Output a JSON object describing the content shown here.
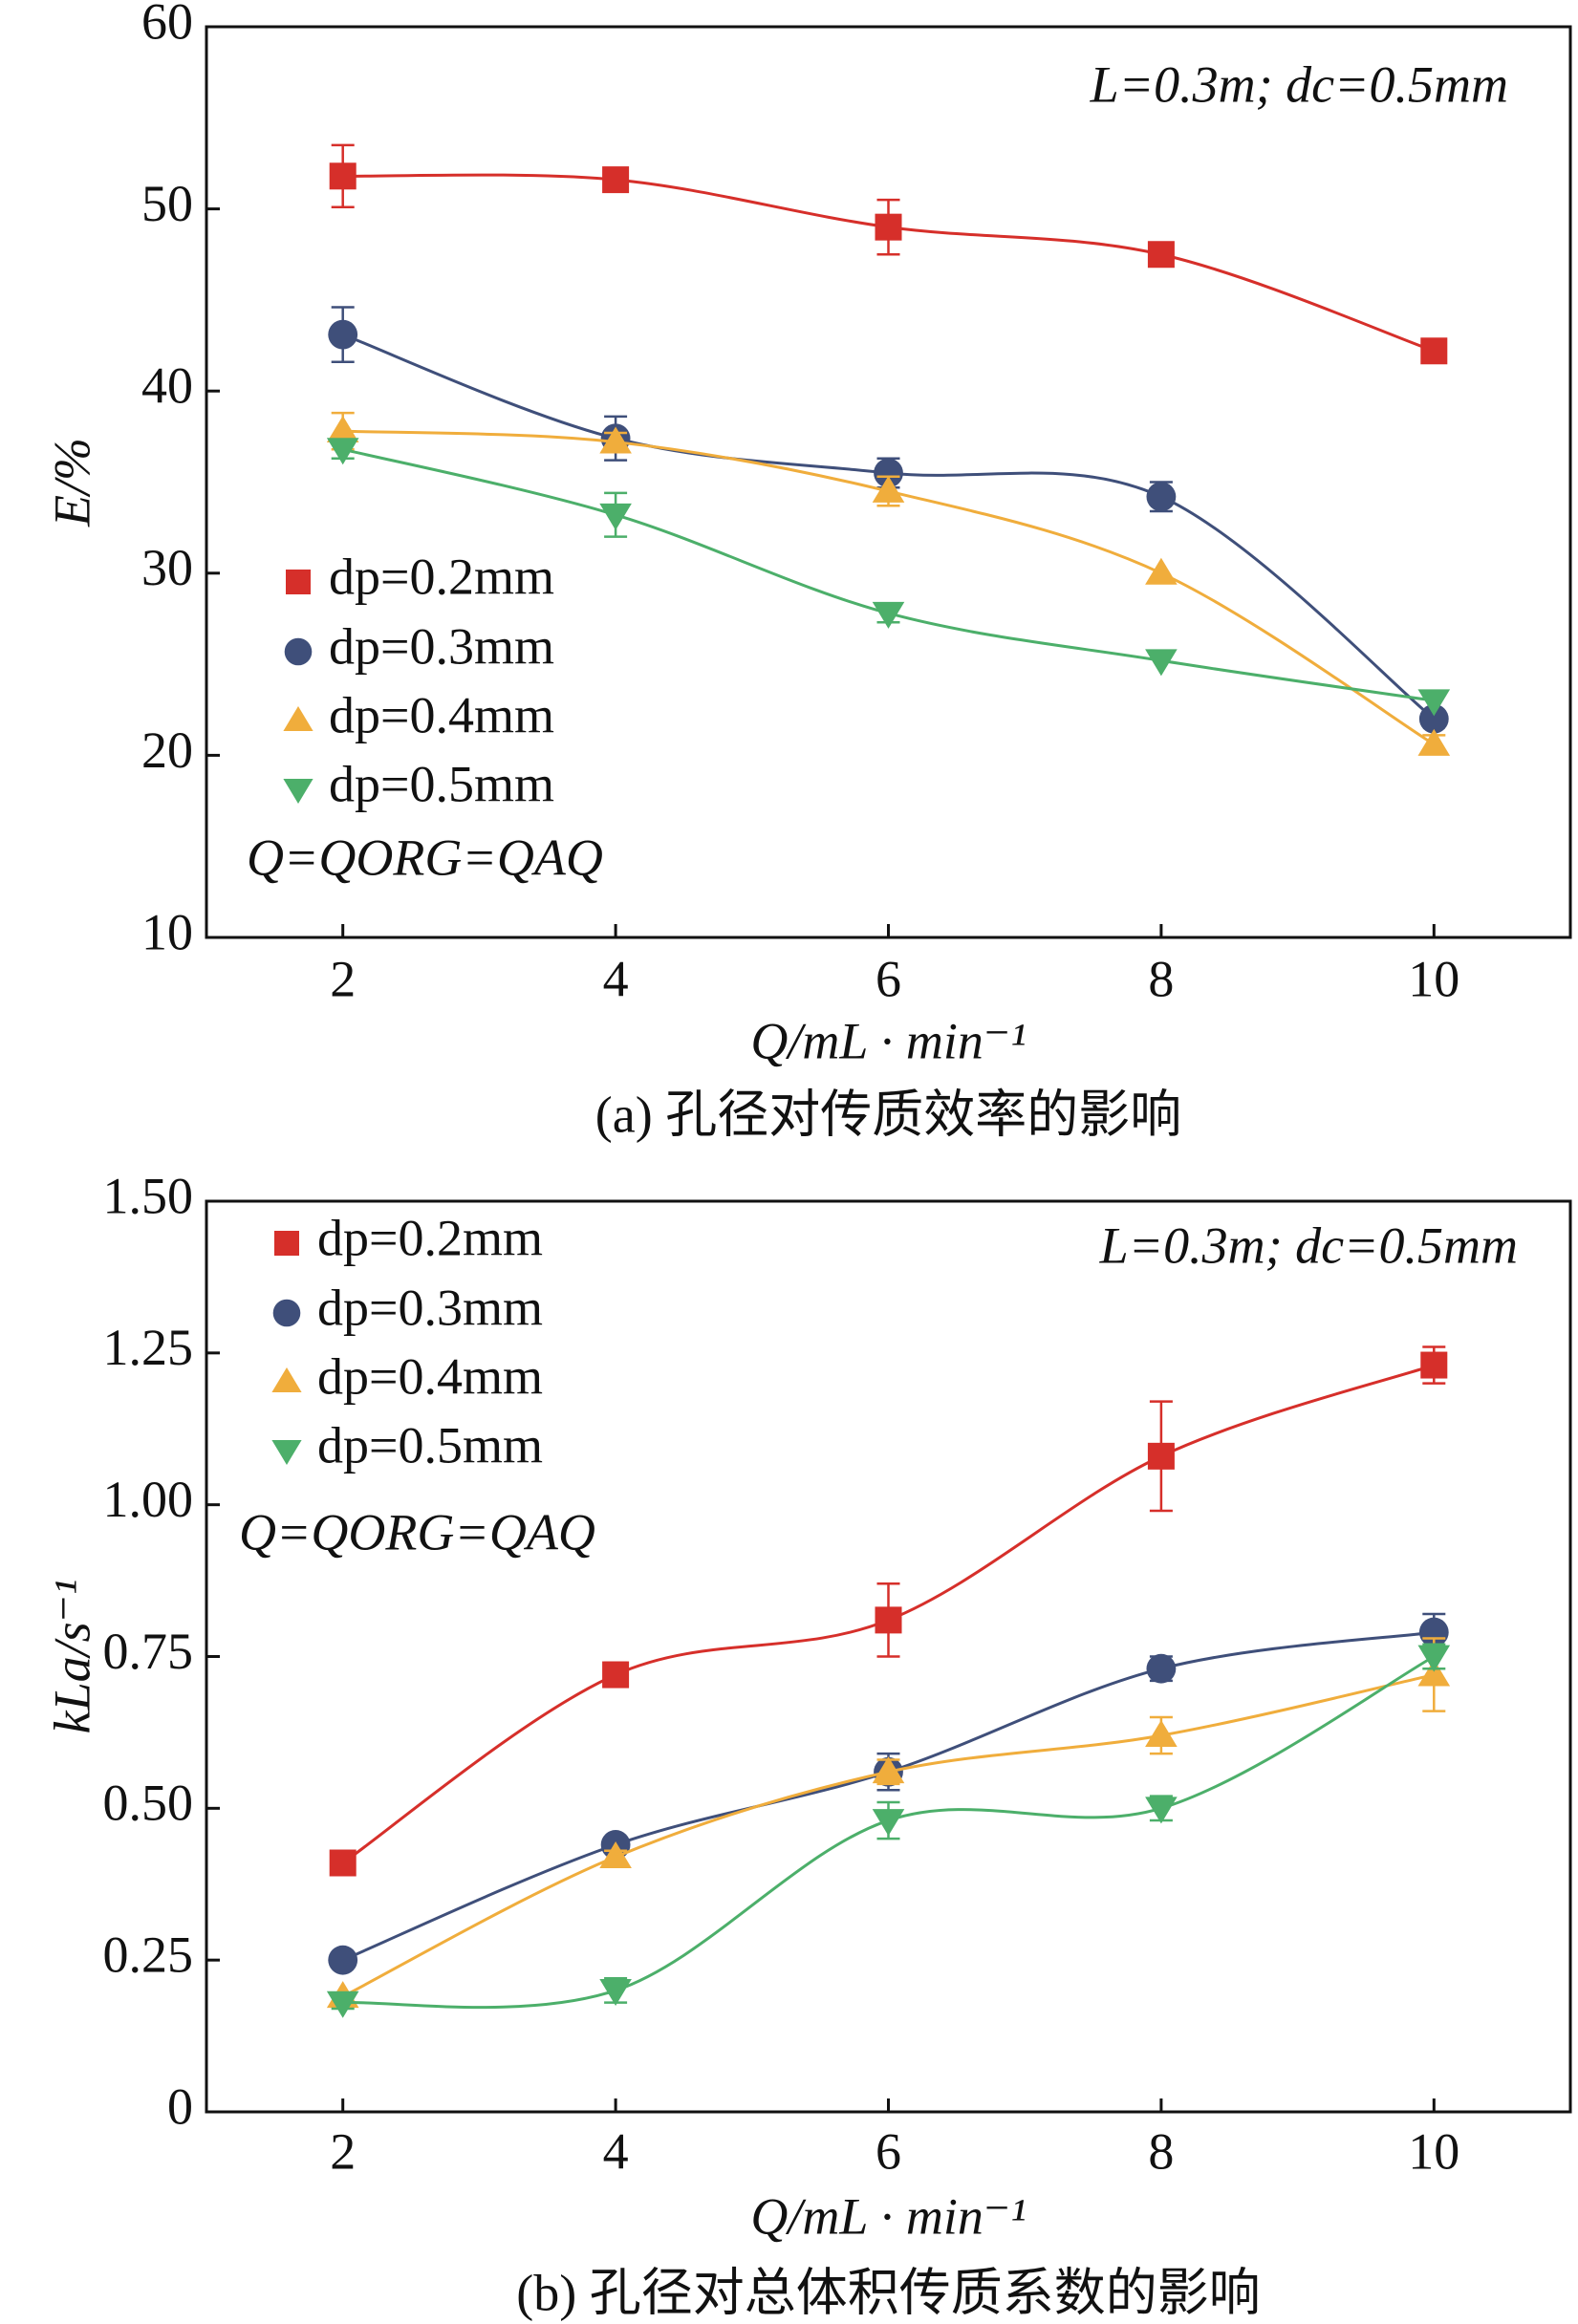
{
  "chart_data": [
    {
      "type": "scatter",
      "x": [
        2,
        4,
        6,
        8,
        10
      ],
      "xlabel": "Q/mL · min⁻¹",
      "ylabel": "E/%",
      "caption": "(a) 孔径对传质效率的影响",
      "annotations": [
        "L=0.3m; dc=0.5mm",
        "Q=QORG=QAQ"
      ],
      "xlim": [
        1,
        11
      ],
      "xticks": [
        2,
        4,
        6,
        8,
        10
      ],
      "ylim": [
        10,
        60
      ],
      "yticks": [
        10,
        20,
        30,
        40,
        50,
        60
      ],
      "legend": "left",
      "series": [
        {
          "name": "dp=0.2mm",
          "color": "#d62f2a",
          "marker": "square",
          "values": [
            51.8,
            51.6,
            49.0,
            47.5,
            42.2
          ],
          "errors": [
            1.7,
            0,
            1.5,
            0,
            0
          ]
        },
        {
          "name": "dp=0.3mm",
          "color": "#3f4f7a",
          "marker": "circle",
          "values": [
            43.1,
            37.4,
            35.5,
            34.2,
            22.0
          ],
          "errors": [
            1.5,
            1.2,
            0.8,
            0.8,
            0
          ]
        },
        {
          "name": "dp=0.4mm",
          "color": "#f0ad3c",
          "marker": "triangle-up",
          "values": [
            37.8,
            37.2,
            34.5,
            30.0,
            20.6
          ],
          "errors": [
            1.0,
            0.5,
            0.8,
            0,
            0.5
          ]
        },
        {
          "name": "dp=0.5mm",
          "color": "#4caf6a",
          "marker": "triangle-down",
          "values": [
            36.8,
            33.2,
            27.8,
            25.2,
            23.0
          ],
          "errors": [
            0.5,
            1.2,
            0.5,
            0,
            0
          ]
        }
      ]
    },
    {
      "type": "scatter",
      "x": [
        2,
        4,
        6,
        8,
        10
      ],
      "xlabel": "Q/mL · min⁻¹",
      "ylabel": "kLa/s⁻¹",
      "caption": "(b) 孔径对总体积传质系数的影响",
      "annotations": [
        "L=0.3m; dc=0.5mm",
        "Q=QORG=QAQ"
      ],
      "xlim": [
        1,
        11
      ],
      "xticks": [
        2,
        4,
        6,
        8,
        10
      ],
      "ylim": [
        0,
        1.5
      ],
      "yticks": [
        0,
        0.25,
        {
          "value": 0.5,
          "label": "0.50"
        },
        0.75,
        {
          "value": 1,
          "label": "1.00"
        },
        1.25,
        {
          "value": 1.5,
          "label": "1.50"
        }
      ],
      "legend": "upper left",
      "series": [
        {
          "name": "dp=0.2mm",
          "color": "#d62f2a",
          "marker": "square",
          "values": [
            0.41,
            0.72,
            0.81,
            1.08,
            1.23
          ],
          "errors": [
            0,
            0.02,
            0.06,
            0.09,
            0.03
          ]
        },
        {
          "name": "dp=0.3mm",
          "color": "#3f4f7a",
          "marker": "circle",
          "values": [
            0.25,
            0.44,
            0.56,
            0.73,
            0.79
          ],
          "errors": [
            0,
            0.01,
            0.03,
            0.02,
            0.03
          ]
        },
        {
          "name": "dp=0.4mm",
          "color": "#f0ad3c",
          "marker": "triangle-up",
          "values": [
            0.19,
            0.42,
            0.56,
            0.62,
            0.72
          ],
          "errors": [
            0,
            0.01,
            0.02,
            0.03,
            0.06
          ]
        },
        {
          "name": "dp=0.5mm",
          "color": "#4caf6a",
          "marker": "triangle-down",
          "values": [
            0.18,
            0.2,
            0.48,
            0.5,
            0.75
          ],
          "errors": [
            0.01,
            0.02,
            0.03,
            0.02,
            0.02
          ]
        }
      ]
    }
  ]
}
